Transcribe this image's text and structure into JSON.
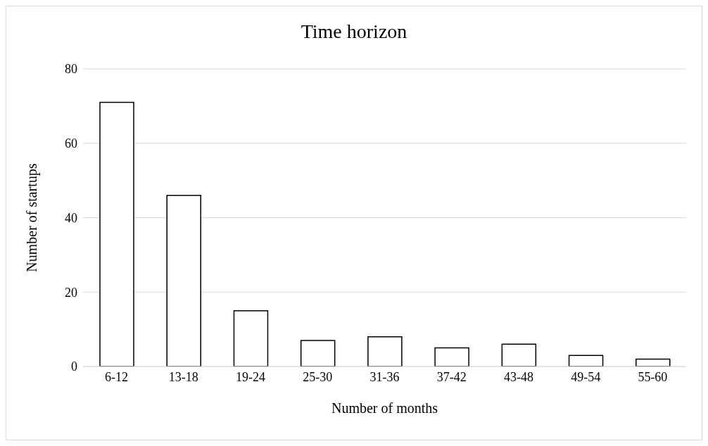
{
  "chart_data": {
    "type": "bar",
    "title": "Time horizon",
    "xlabel": "Number of months",
    "ylabel": "Number of startups",
    "categories": [
      "6-12",
      "13-18",
      "19-24",
      "25-30",
      "31-36",
      "37-42",
      "43-48",
      "49-54",
      "55-60"
    ],
    "values": [
      71,
      46,
      15,
      7,
      8,
      5,
      6,
      3,
      2
    ],
    "color": "#ffffff",
    "ylim": [
      0,
      80
    ],
    "yticks": [
      0,
      20,
      40,
      60,
      80
    ],
    "grid": "y"
  }
}
